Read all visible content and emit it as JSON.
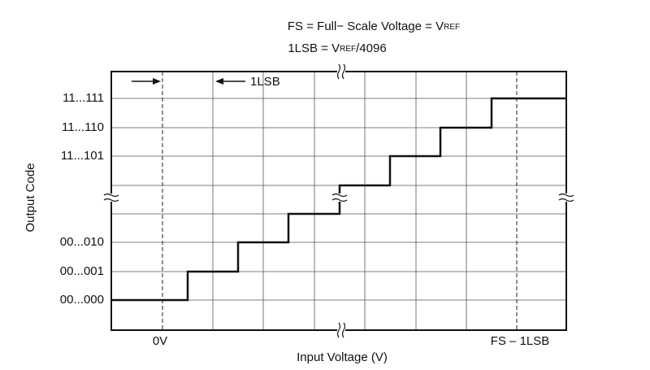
{
  "header": {
    "line1": [
      "FS = Full− Scale Voltage = V",
      "REF"
    ],
    "line2": [
      "1LSB = V",
      "REF",
      "/4096"
    ]
  },
  "annotation": "1LSB",
  "y_axis": {
    "title": "Output Code",
    "labels": [
      "11...111",
      "11...110",
      "11...101",
      "00...010",
      "00...001",
      "00...000"
    ]
  },
  "x_axis": {
    "title": "Input Voltage (V)",
    "labels": [
      "0V",
      "FS – 1LSB"
    ]
  }
}
